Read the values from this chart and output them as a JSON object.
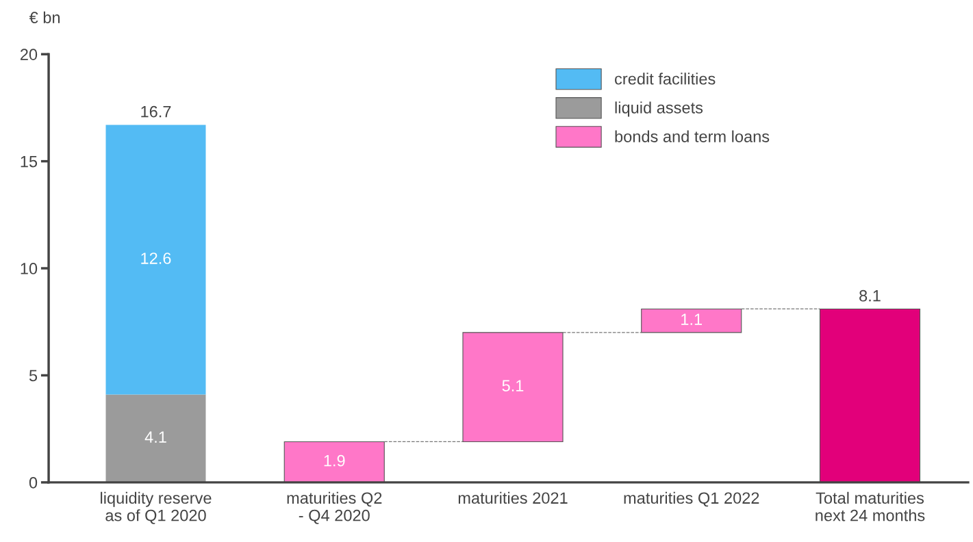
{
  "chart_data": {
    "type": "bar",
    "stacked": true,
    "ylabel": "€ bn",
    "categories": [
      "liquidity reserve\nas of Q1 2020",
      "maturities Q2\n- Q4 2020",
      "maturities 2021",
      "maturities Q1 2022",
      "Total maturities\nnext 24 months"
    ],
    "series": [
      {
        "name": "liquid assets",
        "color": "#9b9b9b",
        "values": [
          4.1,
          null,
          null,
          null,
          null
        ],
        "value_labels": [
          "4.1",
          null,
          null,
          null,
          null
        ]
      },
      {
        "name": "credit facilities",
        "color": "#53bbf4",
        "values": [
          12.6,
          null,
          null,
          null,
          null
        ],
        "value_labels": [
          "12.6",
          null,
          null,
          null,
          null
        ]
      },
      {
        "name": "bonds and term loans",
        "color": "#ff77c8",
        "colors": [
          null,
          "#ff77c8",
          "#ff77c8",
          "#ff77c8",
          "#e2007a"
        ],
        "values": [
          null,
          1.9,
          5.1,
          1.1,
          8.1
        ],
        "base": [
          null,
          0,
          1.9,
          7.0,
          0
        ],
        "value_labels": [
          null,
          "1.9",
          "5.1",
          "1.1",
          null
        ]
      }
    ],
    "totals": [
      "16.7",
      null,
      null,
      null,
      "8.1"
    ],
    "ylim": [
      0,
      20
    ],
    "yticks": [
      0,
      5,
      10,
      15,
      20
    ],
    "grid": false,
    "legend": "top right"
  }
}
